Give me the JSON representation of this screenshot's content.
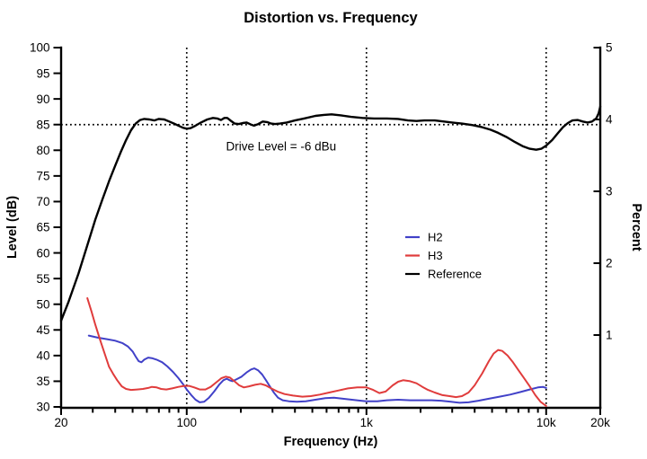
{
  "title": "Distortion vs. Frequency",
  "annotation": "Drive Level = -6 dBu",
  "axes": {
    "x": {
      "label": "Frequency (Hz)",
      "scale": "log",
      "min_hz": 20,
      "max_hz": 20000,
      "major_ticks": [
        {
          "f": 20,
          "label": "20"
        },
        {
          "f": 100,
          "label": "100"
        },
        {
          "f": 1000,
          "label": "1k"
        },
        {
          "f": 10000,
          "label": "10k"
        },
        {
          "f": 20000,
          "label": "20k"
        }
      ],
      "minor_ticks": [
        30,
        40,
        50,
        60,
        70,
        80,
        90,
        200,
        300,
        400,
        500,
        600,
        700,
        800,
        900,
        2000,
        3000,
        4000,
        5000,
        6000,
        7000,
        8000,
        9000
      ],
      "dotted_grid_lines_hz": [
        100,
        1000,
        10000
      ]
    },
    "y_left": {
      "label": "Level (dB)",
      "min": 30,
      "max": 100,
      "ticks": [
        100,
        95,
        90,
        85,
        80,
        75,
        70,
        65,
        60,
        55,
        50,
        45,
        40,
        35,
        30
      ],
      "dotted_grid_lines_db": [
        85
      ]
    },
    "y_right": {
      "label": "Percent",
      "min": 0,
      "max": 5,
      "ticks": [
        5,
        4,
        3,
        2,
        1
      ]
    }
  },
  "chart_data": {
    "type": "line",
    "title": "Distortion vs. Frequency",
    "xlabel": "Frequency (Hz)",
    "ylabel_left": "Level (dB)",
    "ylabel_right": "Percent",
    "x_scale": "log",
    "xlim": [
      20,
      20000
    ],
    "ylim_left": [
      30,
      100
    ],
    "ylim_right": [
      0,
      5
    ],
    "grid": "dotted vertical lines at 100 Hz, 1 kHz, 10 kHz; dotted horizontal line at 85 dB (~3.93%)",
    "legend_position": "inside plot, center-right",
    "annotations": [
      {
        "text": "Drive Level = -6 dBu",
        "x_hz": 335,
        "y_db": 80.0
      }
    ],
    "series": [
      {
        "name": "H2",
        "color": "#4141c8",
        "units": "dB (left axis)",
        "points": [
          [
            28.5,
            43.9
          ],
          [
            32,
            43.5
          ],
          [
            36,
            43.2
          ],
          [
            40,
            42.9
          ],
          [
            44,
            42.4
          ],
          [
            47,
            41.8
          ],
          [
            50,
            40.8
          ],
          [
            52,
            39.8
          ],
          [
            54,
            38.9
          ],
          [
            56,
            38.7
          ],
          [
            58,
            39.2
          ],
          [
            61,
            39.6
          ],
          [
            64,
            39.5
          ],
          [
            68,
            39.2
          ],
          [
            73,
            38.7
          ],
          [
            78,
            37.9
          ],
          [
            84,
            36.8
          ],
          [
            90,
            35.6
          ],
          [
            96,
            34.3
          ],
          [
            100,
            33.4
          ],
          [
            106,
            32.3
          ],
          [
            112,
            31.4
          ],
          [
            118,
            30.9
          ],
          [
            125,
            31.0
          ],
          [
            133,
            31.8
          ],
          [
            142,
            33.0
          ],
          [
            152,
            34.4
          ],
          [
            160,
            35.2
          ],
          [
            167,
            35.5
          ],
          [
            173,
            35.2
          ],
          [
            180,
            35.0
          ],
          [
            190,
            35.4
          ],
          [
            202,
            35.9
          ],
          [
            215,
            36.7
          ],
          [
            228,
            37.3
          ],
          [
            238,
            37.5
          ],
          [
            250,
            37.1
          ],
          [
            263,
            36.3
          ],
          [
            276,
            35.2
          ],
          [
            290,
            34.0
          ],
          [
            305,
            32.8
          ],
          [
            322,
            31.8
          ],
          [
            342,
            31.3
          ],
          [
            370,
            31.1
          ],
          [
            410,
            31.0
          ],
          [
            460,
            31.1
          ],
          [
            520,
            31.4
          ],
          [
            590,
            31.7
          ],
          [
            660,
            31.8
          ],
          [
            740,
            31.6
          ],
          [
            830,
            31.4
          ],
          [
            930,
            31.2
          ],
          [
            1000,
            31.1
          ],
          [
            1150,
            31.1
          ],
          [
            1300,
            31.3
          ],
          [
            1500,
            31.4
          ],
          [
            1750,
            31.3
          ],
          [
            2000,
            31.3
          ],
          [
            2300,
            31.3
          ],
          [
            2600,
            31.2
          ],
          [
            2950,
            31.0
          ],
          [
            3300,
            30.8
          ],
          [
            3700,
            30.9
          ],
          [
            4200,
            31.2
          ],
          [
            4800,
            31.6
          ],
          [
            5500,
            32.0
          ],
          [
            6300,
            32.4
          ],
          [
            7200,
            32.9
          ],
          [
            8100,
            33.4
          ],
          [
            9000,
            33.8
          ],
          [
            9600,
            33.9
          ],
          [
            10000,
            33.7
          ]
        ]
      },
      {
        "name": "H3",
        "color": "#e03c3c",
        "units": "dB (left axis)",
        "points": [
          [
            28,
            51.2
          ],
          [
            29.5,
            48.6
          ],
          [
            31,
            46.0
          ],
          [
            33,
            43.0
          ],
          [
            35,
            40.3
          ],
          [
            37,
            37.8
          ],
          [
            39,
            36.4
          ],
          [
            41,
            35.2
          ],
          [
            43.5,
            34.0
          ],
          [
            46,
            33.5
          ],
          [
            49,
            33.3
          ],
          [
            53,
            33.4
          ],
          [
            57,
            33.5
          ],
          [
            61,
            33.7
          ],
          [
            64,
            33.9
          ],
          [
            68,
            33.8
          ],
          [
            72,
            33.5
          ],
          [
            77,
            33.4
          ],
          [
            83,
            33.6
          ],
          [
            90,
            33.9
          ],
          [
            97,
            34.1
          ],
          [
            103,
            34.1
          ],
          [
            110,
            33.8
          ],
          [
            118,
            33.4
          ],
          [
            127,
            33.4
          ],
          [
            136,
            33.9
          ],
          [
            146,
            34.8
          ],
          [
            156,
            35.6
          ],
          [
            165,
            35.9
          ],
          [
            174,
            35.7
          ],
          [
            184,
            35.0
          ],
          [
            196,
            34.2
          ],
          [
            208,
            33.8
          ],
          [
            222,
            34.0
          ],
          [
            240,
            34.3
          ],
          [
            258,
            34.5
          ],
          [
            275,
            34.2
          ],
          [
            295,
            33.6
          ],
          [
            320,
            33.0
          ],
          [
            350,
            32.5
          ],
          [
            390,
            32.2
          ],
          [
            440,
            32.0
          ],
          [
            490,
            32.1
          ],
          [
            550,
            32.4
          ],
          [
            620,
            32.8
          ],
          [
            700,
            33.2
          ],
          [
            790,
            33.6
          ],
          [
            890,
            33.8
          ],
          [
            1000,
            33.8
          ],
          [
            1090,
            33.3
          ],
          [
            1180,
            32.7
          ],
          [
            1280,
            33.0
          ],
          [
            1400,
            34.2
          ],
          [
            1500,
            34.9
          ],
          [
            1600,
            35.2
          ],
          [
            1750,
            35.0
          ],
          [
            1900,
            34.6
          ],
          [
            2050,
            33.9
          ],
          [
            2200,
            33.3
          ],
          [
            2400,
            32.8
          ],
          [
            2650,
            32.3
          ],
          [
            2900,
            32.1
          ],
          [
            3150,
            31.9
          ],
          [
            3400,
            32.1
          ],
          [
            3700,
            32.8
          ],
          [
            4000,
            34.2
          ],
          [
            4400,
            36.5
          ],
          [
            4800,
            38.9
          ],
          [
            5100,
            40.4
          ],
          [
            5400,
            41.1
          ],
          [
            5700,
            40.9
          ],
          [
            6100,
            40.0
          ],
          [
            6500,
            38.8
          ],
          [
            7000,
            37.2
          ],
          [
            7500,
            35.7
          ],
          [
            8100,
            34.0
          ],
          [
            8700,
            32.3
          ],
          [
            9300,
            31.0
          ],
          [
            10000,
            30.2
          ]
        ]
      },
      {
        "name": "Reference",
        "color": "#000000",
        "units": "dB (left axis)",
        "points": [
          [
            20,
            46.8
          ],
          [
            22,
            50.5
          ],
          [
            25,
            56.0
          ],
          [
            28,
            61.5
          ],
          [
            31,
            66.5
          ],
          [
            34,
            70.5
          ],
          [
            37,
            74.0
          ],
          [
            40,
            77.0
          ],
          [
            43,
            79.7
          ],
          [
            46,
            82.0
          ],
          [
            49,
            83.9
          ],
          [
            52,
            85.2
          ],
          [
            55,
            85.9
          ],
          [
            58,
            86.1
          ],
          [
            62,
            86.0
          ],
          [
            66,
            85.8
          ],
          [
            70,
            86.1
          ],
          [
            75,
            86.0
          ],
          [
            80,
            85.6
          ],
          [
            85,
            85.2
          ],
          [
            90,
            84.8
          ],
          [
            95,
            84.4
          ],
          [
            100,
            84.2
          ],
          [
            105,
            84.3
          ],
          [
            112,
            84.8
          ],
          [
            120,
            85.4
          ],
          [
            130,
            86.0
          ],
          [
            140,
            86.3
          ],
          [
            148,
            86.2
          ],
          [
            155,
            85.9
          ],
          [
            162,
            86.3
          ],
          [
            168,
            86.3
          ],
          [
            175,
            85.8
          ],
          [
            185,
            85.2
          ],
          [
            195,
            85.1
          ],
          [
            205,
            85.3
          ],
          [
            215,
            85.4
          ],
          [
            228,
            85.0
          ],
          [
            237,
            84.8
          ],
          [
            250,
            85.1
          ],
          [
            265,
            85.6
          ],
          [
            280,
            85.5
          ],
          [
            295,
            85.2
          ],
          [
            310,
            85.1
          ],
          [
            330,
            85.2
          ],
          [
            360,
            85.4
          ],
          [
            400,
            85.8
          ],
          [
            450,
            86.2
          ],
          [
            520,
            86.7
          ],
          [
            580,
            86.9
          ],
          [
            640,
            87.0
          ],
          [
            720,
            86.8
          ],
          [
            820,
            86.5
          ],
          [
            950,
            86.3
          ],
          [
            1100,
            86.2
          ],
          [
            1300,
            86.2
          ],
          [
            1500,
            86.1
          ],
          [
            1700,
            85.8
          ],
          [
            1900,
            85.7
          ],
          [
            2100,
            85.8
          ],
          [
            2400,
            85.8
          ],
          [
            2700,
            85.6
          ],
          [
            3000,
            85.4
          ],
          [
            3400,
            85.2
          ],
          [
            3900,
            84.9
          ],
          [
            4400,
            84.5
          ],
          [
            4900,
            84.0
          ],
          [
            5400,
            83.4
          ],
          [
            6000,
            82.6
          ],
          [
            6700,
            81.6
          ],
          [
            7400,
            80.8
          ],
          [
            8100,
            80.3
          ],
          [
            8800,
            80.1
          ],
          [
            9400,
            80.3
          ],
          [
            10000,
            80.9
          ],
          [
            10800,
            82.0
          ],
          [
            11600,
            83.3
          ],
          [
            12400,
            84.5
          ],
          [
            13200,
            85.3
          ],
          [
            14000,
            85.8
          ],
          [
            15000,
            85.9
          ],
          [
            16000,
            85.6
          ],
          [
            17000,
            85.4
          ],
          [
            18000,
            85.6
          ],
          [
            19000,
            86.2
          ],
          [
            19600,
            87.2
          ],
          [
            20000,
            88.5
          ]
        ]
      }
    ]
  }
}
